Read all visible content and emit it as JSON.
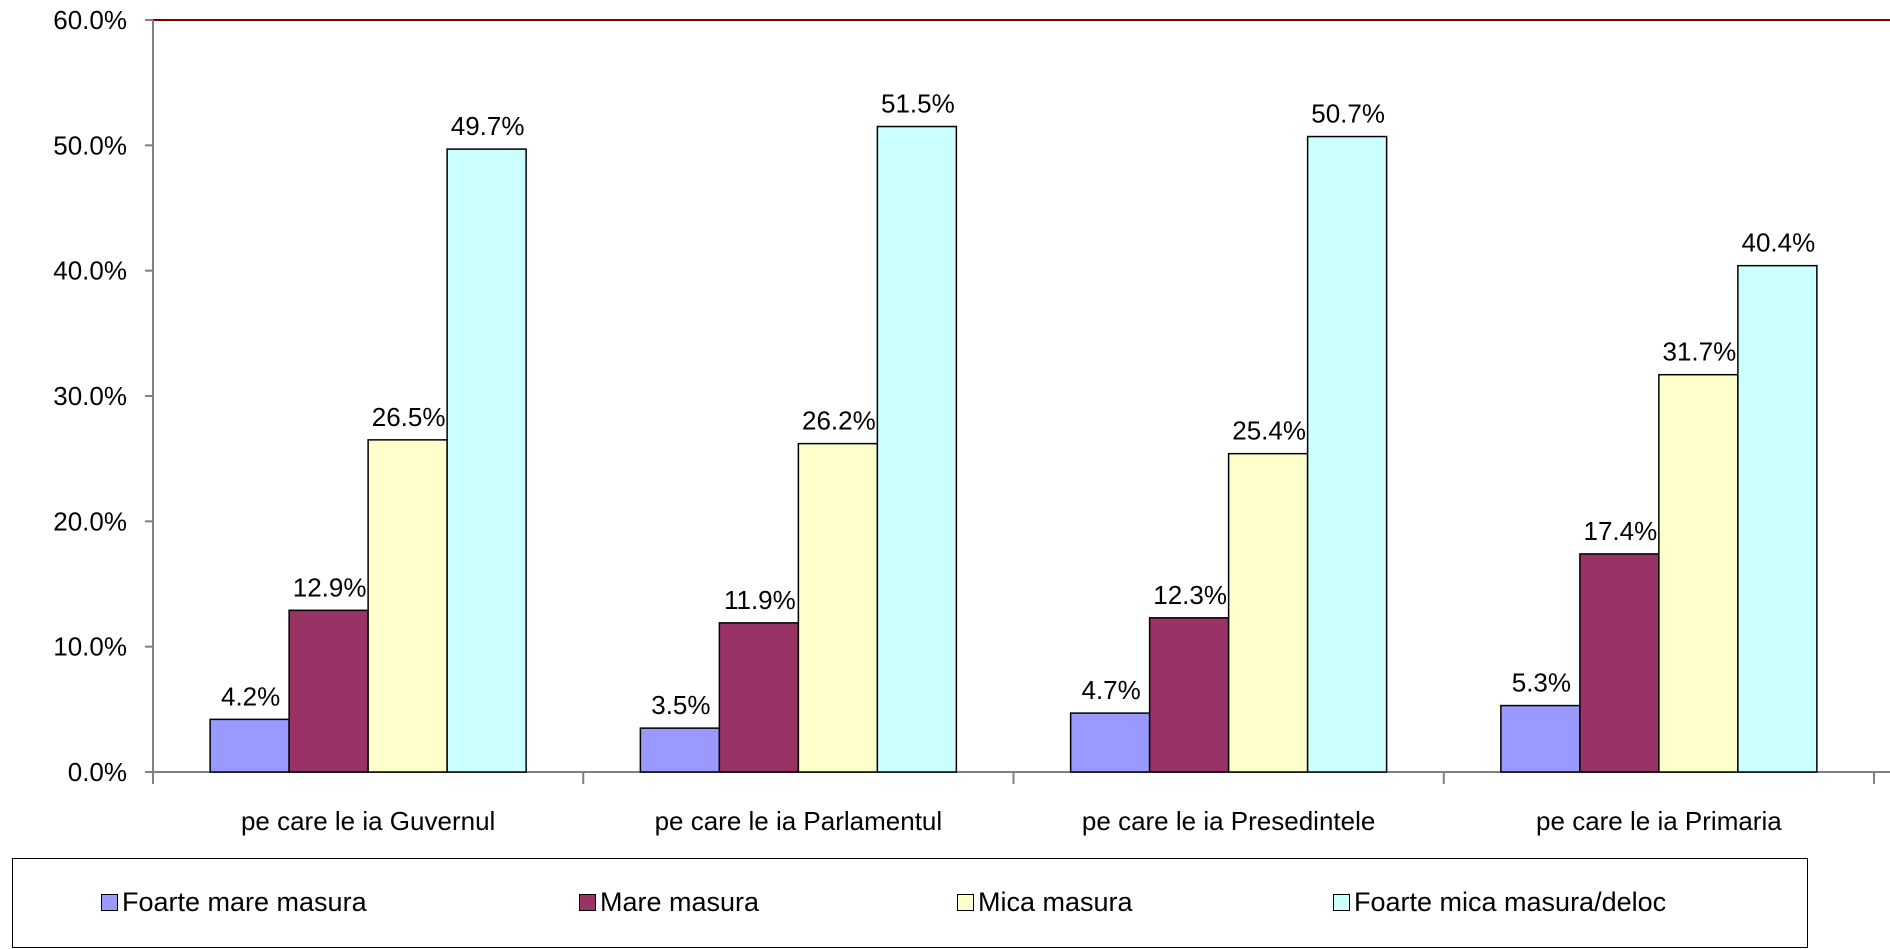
{
  "chart_data": {
    "type": "bar",
    "title": "",
    "xlabel": "",
    "ylabel": "",
    "ylim": [
      0,
      60
    ],
    "y_ticks": [
      "0.0%",
      "10.0%",
      "20.0%",
      "30.0%",
      "40.0%",
      "50.0%",
      "60.0%"
    ],
    "y_tick_values": [
      0,
      10,
      20,
      30,
      40,
      50,
      60
    ],
    "grid": false,
    "legend_position": "bottom",
    "categories": [
      "pe care le ia Guvernul",
      "pe care le ia Parlamentul",
      "pe care le ia Presedintele",
      "pe care le ia Primaria"
    ],
    "series": [
      {
        "name": "Foarte mare masura",
        "color": "#9999ff",
        "values": [
          4.2,
          3.5,
          4.7,
          5.3
        ],
        "labels": [
          "4.2%",
          "3.5%",
          "4.7%",
          "5.3%"
        ]
      },
      {
        "name": "Mare masura",
        "color": "#993366",
        "values": [
          12.9,
          11.9,
          12.3,
          17.4
        ],
        "labels": [
          "12.9%",
          "11.9%",
          "12.3%",
          "17.4%"
        ]
      },
      {
        "name": "Mica masura",
        "color": "#ffffcc",
        "values": [
          26.5,
          26.2,
          25.4,
          31.7
        ],
        "labels": [
          "26.5%",
          "26.2%",
          "25.4%",
          "31.7%"
        ]
      },
      {
        "name": "Foarte mica masura/deloc",
        "color": "#ccffff",
        "values": [
          49.7,
          51.5,
          50.7,
          40.4
        ],
        "labels": [
          "49.7%",
          "51.5%",
          "50.7%",
          "40.4%"
        ]
      }
    ]
  }
}
